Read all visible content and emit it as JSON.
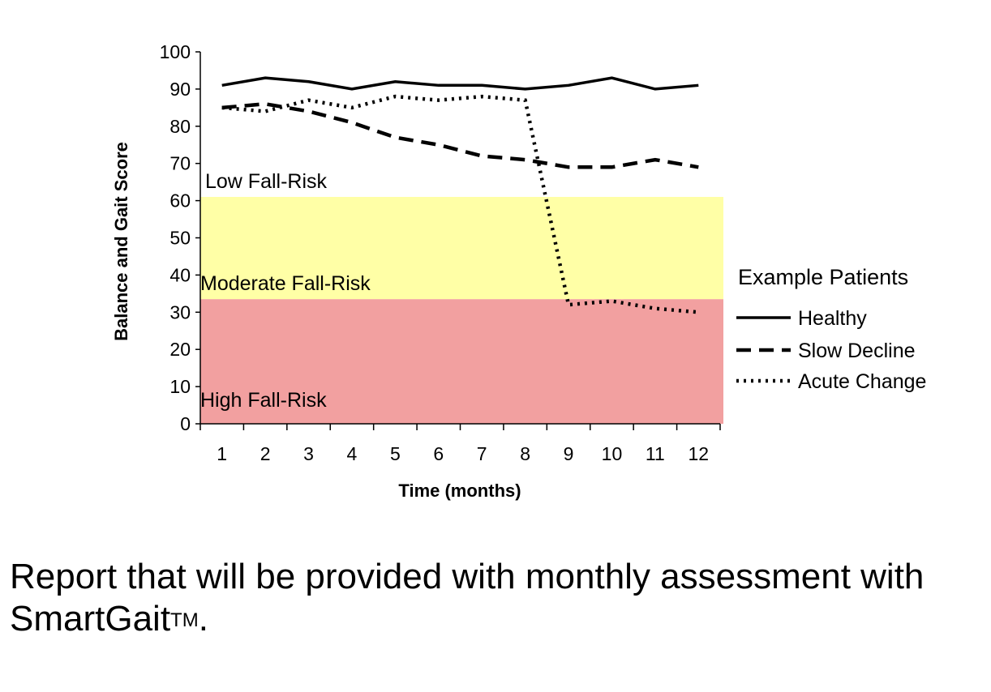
{
  "chart_data": {
    "type": "line",
    "xlabel": "Time (months)",
    "ylabel": "Balance and Gait Score",
    "ylim": [
      0,
      100
    ],
    "yticks": [
      0,
      10,
      20,
      30,
      40,
      50,
      60,
      70,
      80,
      90,
      100
    ],
    "categories": [
      "1",
      "2",
      "3",
      "4",
      "5",
      "6",
      "7",
      "8",
      "9",
      "10",
      "11",
      "12"
    ],
    "grid": false,
    "legend": {
      "title": "Example Patients",
      "placement": "right"
    },
    "series": [
      {
        "name": "Healthy",
        "style": "solid",
        "values": [
          91,
          93,
          92,
          90,
          92,
          91,
          91,
          90,
          91,
          93,
          90,
          91
        ]
      },
      {
        "name": "Slow Decline",
        "style": "dashed",
        "values": [
          85,
          86,
          84,
          81,
          77,
          75,
          72,
          71,
          69,
          69,
          71,
          69
        ]
      },
      {
        "name": "Acute Change",
        "style": "dotted",
        "values": [
          85,
          84,
          87,
          85,
          88,
          87,
          88,
          87,
          32,
          33,
          31,
          30
        ]
      }
    ],
    "zones": [
      {
        "label": "Low Fall-Risk",
        "from": 61,
        "to": 100,
        "color": "#ffffff"
      },
      {
        "label": "Moderate Fall-Risk",
        "from": 33.5,
        "to": 61,
        "color": "#ffffa6"
      },
      {
        "label": "High Fall-Risk",
        "from": 0,
        "to": 33.5,
        "color": "#f2a0a0"
      }
    ]
  },
  "caption": {
    "text": "Report that will be provided with monthly assessment with SmartGait",
    "superscript": "TM",
    "end": "."
  }
}
